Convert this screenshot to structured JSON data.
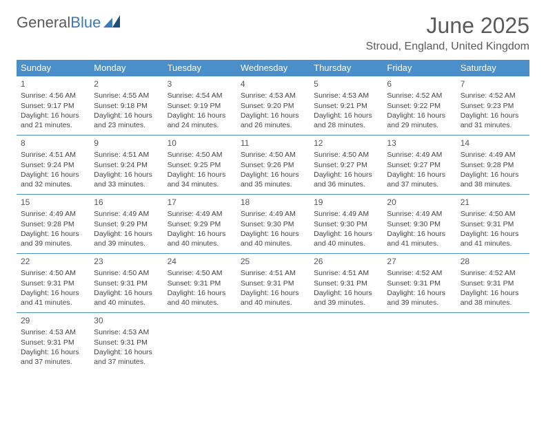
{
  "brand": {
    "part1": "General",
    "part2": "Blue"
  },
  "title": "June 2025",
  "location": "Stroud, England, United Kingdom",
  "colors": {
    "header_bg": "#4a8fc9",
    "header_fg": "#ffffff",
    "border": "#4a8fc9",
    "text": "#444444",
    "title": "#5a5a5a"
  },
  "dayHeaders": [
    "Sunday",
    "Monday",
    "Tuesday",
    "Wednesday",
    "Thursday",
    "Friday",
    "Saturday"
  ],
  "weeks": [
    [
      {
        "n": "1",
        "sunrise": "4:56 AM",
        "sunset": "9:17 PM",
        "dlh": "16",
        "dlm": "21"
      },
      {
        "n": "2",
        "sunrise": "4:55 AM",
        "sunset": "9:18 PM",
        "dlh": "16",
        "dlm": "23"
      },
      {
        "n": "3",
        "sunrise": "4:54 AM",
        "sunset": "9:19 PM",
        "dlh": "16",
        "dlm": "24"
      },
      {
        "n": "4",
        "sunrise": "4:53 AM",
        "sunset": "9:20 PM",
        "dlh": "16",
        "dlm": "26"
      },
      {
        "n": "5",
        "sunrise": "4:53 AM",
        "sunset": "9:21 PM",
        "dlh": "16",
        "dlm": "28"
      },
      {
        "n": "6",
        "sunrise": "4:52 AM",
        "sunset": "9:22 PM",
        "dlh": "16",
        "dlm": "29"
      },
      {
        "n": "7",
        "sunrise": "4:52 AM",
        "sunset": "9:23 PM",
        "dlh": "16",
        "dlm": "31"
      }
    ],
    [
      {
        "n": "8",
        "sunrise": "4:51 AM",
        "sunset": "9:24 PM",
        "dlh": "16",
        "dlm": "32"
      },
      {
        "n": "9",
        "sunrise": "4:51 AM",
        "sunset": "9:24 PM",
        "dlh": "16",
        "dlm": "33"
      },
      {
        "n": "10",
        "sunrise": "4:50 AM",
        "sunset": "9:25 PM",
        "dlh": "16",
        "dlm": "34"
      },
      {
        "n": "11",
        "sunrise": "4:50 AM",
        "sunset": "9:26 PM",
        "dlh": "16",
        "dlm": "35"
      },
      {
        "n": "12",
        "sunrise": "4:50 AM",
        "sunset": "9:27 PM",
        "dlh": "16",
        "dlm": "36"
      },
      {
        "n": "13",
        "sunrise": "4:49 AM",
        "sunset": "9:27 PM",
        "dlh": "16",
        "dlm": "37"
      },
      {
        "n": "14",
        "sunrise": "4:49 AM",
        "sunset": "9:28 PM",
        "dlh": "16",
        "dlm": "38"
      }
    ],
    [
      {
        "n": "15",
        "sunrise": "4:49 AM",
        "sunset": "9:28 PM",
        "dlh": "16",
        "dlm": "39"
      },
      {
        "n": "16",
        "sunrise": "4:49 AM",
        "sunset": "9:29 PM",
        "dlh": "16",
        "dlm": "39"
      },
      {
        "n": "17",
        "sunrise": "4:49 AM",
        "sunset": "9:29 PM",
        "dlh": "16",
        "dlm": "40"
      },
      {
        "n": "18",
        "sunrise": "4:49 AM",
        "sunset": "9:30 PM",
        "dlh": "16",
        "dlm": "40"
      },
      {
        "n": "19",
        "sunrise": "4:49 AM",
        "sunset": "9:30 PM",
        "dlh": "16",
        "dlm": "40"
      },
      {
        "n": "20",
        "sunrise": "4:49 AM",
        "sunset": "9:30 PM",
        "dlh": "16",
        "dlm": "41"
      },
      {
        "n": "21",
        "sunrise": "4:50 AM",
        "sunset": "9:31 PM",
        "dlh": "16",
        "dlm": "41"
      }
    ],
    [
      {
        "n": "22",
        "sunrise": "4:50 AM",
        "sunset": "9:31 PM",
        "dlh": "16",
        "dlm": "41"
      },
      {
        "n": "23",
        "sunrise": "4:50 AM",
        "sunset": "9:31 PM",
        "dlh": "16",
        "dlm": "40"
      },
      {
        "n": "24",
        "sunrise": "4:50 AM",
        "sunset": "9:31 PM",
        "dlh": "16",
        "dlm": "40"
      },
      {
        "n": "25",
        "sunrise": "4:51 AM",
        "sunset": "9:31 PM",
        "dlh": "16",
        "dlm": "40"
      },
      {
        "n": "26",
        "sunrise": "4:51 AM",
        "sunset": "9:31 PM",
        "dlh": "16",
        "dlm": "39"
      },
      {
        "n": "27",
        "sunrise": "4:52 AM",
        "sunset": "9:31 PM",
        "dlh": "16",
        "dlm": "39"
      },
      {
        "n": "28",
        "sunrise": "4:52 AM",
        "sunset": "9:31 PM",
        "dlh": "16",
        "dlm": "38"
      }
    ],
    [
      {
        "n": "29",
        "sunrise": "4:53 AM",
        "sunset": "9:31 PM",
        "dlh": "16",
        "dlm": "37"
      },
      {
        "n": "30",
        "sunrise": "4:53 AM",
        "sunset": "9:31 PM",
        "dlh": "16",
        "dlm": "37"
      },
      null,
      null,
      null,
      null,
      null
    ]
  ],
  "labels": {
    "sunrise": "Sunrise:",
    "sunset": "Sunset:",
    "daylight_prefix": "Daylight:",
    "hours_word": "hours",
    "and_word": "and",
    "minutes_word": "minutes."
  }
}
